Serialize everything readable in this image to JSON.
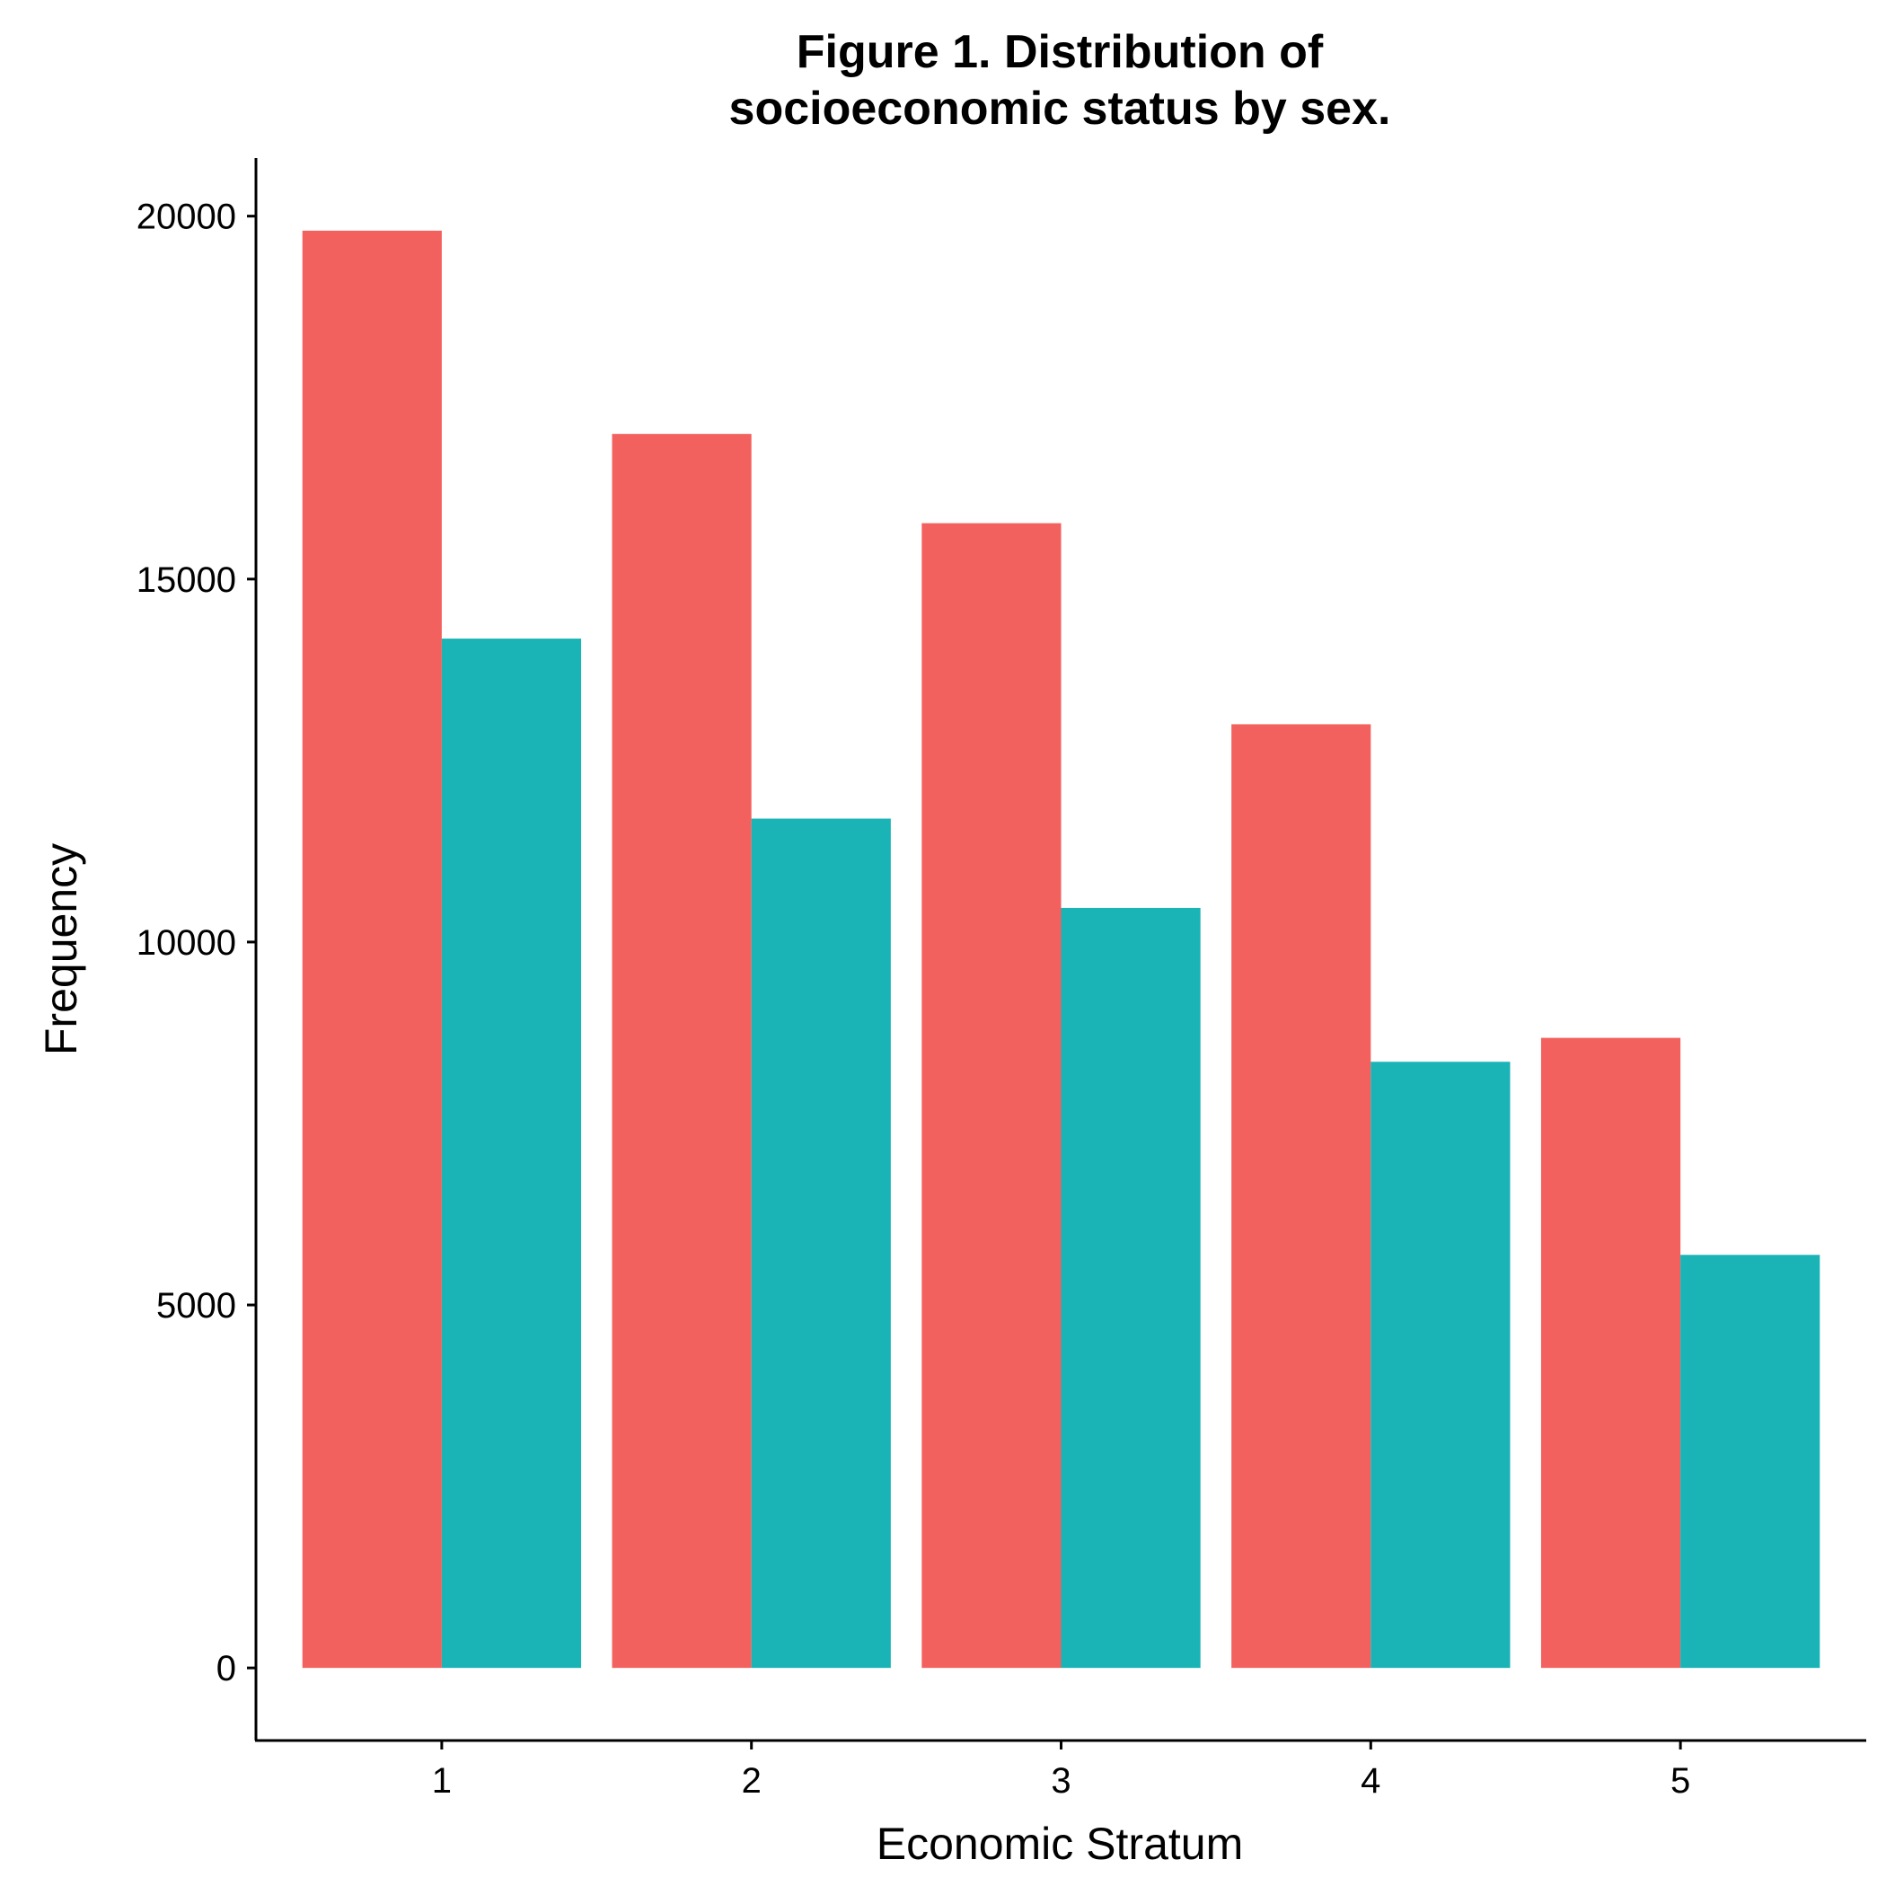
{
  "chart_data": {
    "type": "bar",
    "title_lines": [
      "Figure 1. Distribution of",
      "socioeconomic status by sex."
    ],
    "xlabel": "Economic Stratum",
    "ylabel": "Frequency",
    "categories": [
      "1",
      "2",
      "3",
      "4",
      "5"
    ],
    "ylim": [
      -1000,
      20800
    ],
    "yticks": [
      0,
      5000,
      10000,
      15000,
      20000
    ],
    "ytick_labels": [
      "0",
      "5000",
      "10000",
      "15000",
      "20000"
    ],
    "grid": false,
    "legend": "none",
    "series": [
      {
        "color": "#F2615E",
        "values": [
          19800,
          17000,
          15770,
          13000,
          8680
        ]
      },
      {
        "color": "#1AB3B6",
        "values": [
          14180,
          11700,
          10470,
          8350,
          5690
        ]
      }
    ]
  }
}
